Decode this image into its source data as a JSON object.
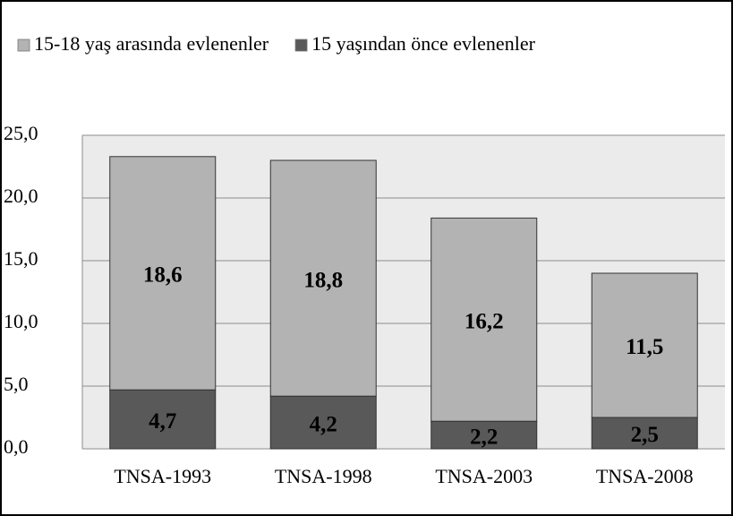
{
  "chart_data": {
    "type": "stacked_bar",
    "categories": [
      "TNSA-1993",
      "TNSA-1998",
      "TNSA-2003",
      "TNSA-2008"
    ],
    "series": [
      {
        "name": "15-18 yaş arasında evlenenler",
        "color": "#b3b3b3",
        "values": [
          18.6,
          18.8,
          16.2,
          11.5
        ],
        "value_labels": [
          "18,6",
          "18,8",
          "16,2",
          "11,5"
        ]
      },
      {
        "name": "15 yaşından önce evlenenler",
        "color": "#595959",
        "values": [
          4.7,
          4.2,
          2.2,
          2.5
        ],
        "value_labels": [
          "4,7",
          "4,2",
          "2,2",
          "2,5"
        ]
      }
    ],
    "ylim": [
      0,
      25
    ],
    "yticks": [
      {
        "value": 0,
        "label": "0,0"
      },
      {
        "value": 5,
        "label": "5,0"
      },
      {
        "value": 10,
        "label": "10,0"
      },
      {
        "value": 15,
        "label": "15,0"
      },
      {
        "value": 20,
        "label": "20,0"
      },
      {
        "value": 25,
        "label": "25,0"
      }
    ],
    "grid": true,
    "legend": "top"
  }
}
